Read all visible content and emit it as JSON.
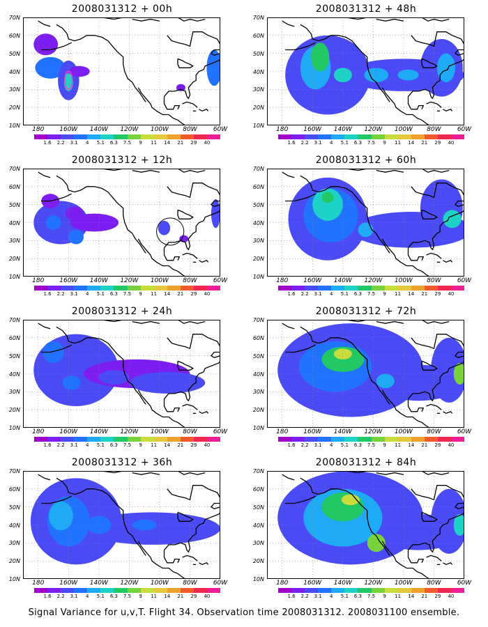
{
  "panels": [
    {
      "title": "2008031312 + 00h",
      "blobs": [
        {
          "cx": -172,
          "cy": 42,
          "rx": 10,
          "ry": 6,
          "level": 3
        },
        {
          "cx": -160,
          "cy": 35,
          "rx": 7,
          "ry": 11,
          "level": 2
        },
        {
          "cx": -160,
          "cy": 34,
          "rx": 3,
          "ry": 5,
          "level": 5
        },
        {
          "cx": -153,
          "cy": 40,
          "rx": 7,
          "ry": 3,
          "level": 1
        },
        {
          "cx": -175,
          "cy": 55,
          "rx": 8,
          "ry": 6,
          "level": 1
        },
        {
          "cx": -86,
          "cy": 31,
          "rx": 3,
          "ry": 2,
          "level": 1
        },
        {
          "cx": -64,
          "cy": 42,
          "rx": 5,
          "ry": 10,
          "level": 3
        }
      ]
    },
    {
      "title": "2008031312 + 48h",
      "blobs": [
        {
          "cx": -150,
          "cy": 38,
          "rx": 28,
          "ry": 22,
          "level": 2
        },
        {
          "cx": -100,
          "cy": 38,
          "rx": 40,
          "ry": 9,
          "level": 2
        },
        {
          "cx": -75,
          "cy": 42,
          "rx": 14,
          "ry": 16,
          "level": 2
        },
        {
          "cx": -158,
          "cy": 42,
          "rx": 10,
          "ry": 12,
          "level": 4
        },
        {
          "cx": -155,
          "cy": 48,
          "rx": 6,
          "ry": 8,
          "level": 6
        },
        {
          "cx": -140,
          "cy": 38,
          "rx": 6,
          "ry": 4,
          "level": 5
        },
        {
          "cx": -118,
          "cy": 38,
          "rx": 8,
          "ry": 4,
          "level": 4
        },
        {
          "cx": -97,
          "cy": 38,
          "rx": 7,
          "ry": 3,
          "level": 4
        },
        {
          "cx": -72,
          "cy": 42,
          "rx": 6,
          "ry": 8,
          "level": 4
        }
      ]
    },
    {
      "title": "2008031312 + 12h",
      "blobs": [
        {
          "cx": -165,
          "cy": 40,
          "rx": 18,
          "ry": 12,
          "level": 2
        },
        {
          "cx": -172,
          "cy": 52,
          "rx": 6,
          "ry": 4,
          "level": 1
        },
        {
          "cx": -143,
          "cy": 40,
          "rx": 16,
          "ry": 5,
          "level": 1
        },
        {
          "cx": -156,
          "cy": 45,
          "rx": 6,
          "ry": 4,
          "level": 1
        },
        {
          "cx": -170,
          "cy": 40,
          "rx": 5,
          "ry": 4,
          "level": 3
        },
        {
          "cx": -155,
          "cy": 32,
          "rx": 5,
          "ry": 4,
          "level": 3
        },
        {
          "cx": -97,
          "cy": 37,
          "rx": 4,
          "ry": 4,
          "level": 2
        },
        {
          "cx": -84,
          "cy": 31,
          "rx": 3,
          "ry": 2,
          "level": 1
        },
        {
          "cx": -63,
          "cy": 45,
          "rx": 3,
          "ry": 8,
          "level": 2
        }
      ],
      "circle": {
        "cx": -93,
        "cy": 35,
        "r": 9
      }
    },
    {
      "title": "2008031312 + 60h",
      "blobs": [
        {
          "cx": -150,
          "cy": 42,
          "rx": 26,
          "ry": 23,
          "level": 2
        },
        {
          "cx": -95,
          "cy": 36,
          "rx": 40,
          "ry": 10,
          "level": 2
        },
        {
          "cx": -75,
          "cy": 48,
          "rx": 14,
          "ry": 16,
          "level": 2
        },
        {
          "cx": -148,
          "cy": 44,
          "rx": 18,
          "ry": 15,
          "level": 3
        },
        {
          "cx": -150,
          "cy": 50,
          "rx": 10,
          "ry": 9,
          "level": 5
        },
        {
          "cx": -150,
          "cy": 54,
          "rx": 4,
          "ry": 3,
          "level": 6
        },
        {
          "cx": -125,
          "cy": 36,
          "rx": 5,
          "ry": 4,
          "level": 4
        },
        {
          "cx": -68,
          "cy": 42,
          "rx": 6,
          "ry": 5,
          "level": 5
        }
      ]
    },
    {
      "title": "2008031312 + 24h",
      "blobs": [
        {
          "cx": -155,
          "cy": 42,
          "rx": 28,
          "ry": 20,
          "level": 2
        },
        {
          "cx": -115,
          "cy": 40,
          "rx": 35,
          "ry": 8,
          "level": 1
        },
        {
          "cx": -95,
          "cy": 35,
          "rx": 25,
          "ry": 6,
          "level": 2
        },
        {
          "cx": -170,
          "cy": 52,
          "rx": 7,
          "ry": 6,
          "level": 3
        },
        {
          "cx": -158,
          "cy": 35,
          "rx": 6,
          "ry": 4,
          "level": 3
        },
        {
          "cx": -130,
          "cy": 38,
          "rx": 10,
          "ry": 4,
          "level": 2
        }
      ]
    },
    {
      "title": "2008031312 + 72h",
      "blobs": [
        {
          "cx": -135,
          "cy": 42,
          "rx": 48,
          "ry": 26,
          "level": 2
        },
        {
          "cx": -90,
          "cy": 35,
          "rx": 28,
          "ry": 10,
          "level": 2
        },
        {
          "cx": -70,
          "cy": 42,
          "rx": 12,
          "ry": 18,
          "level": 2
        },
        {
          "cx": -145,
          "cy": 44,
          "rx": 24,
          "ry": 14,
          "level": 3
        },
        {
          "cx": -140,
          "cy": 48,
          "rx": 14,
          "ry": 7,
          "level": 6
        },
        {
          "cx": -140,
          "cy": 51,
          "rx": 6,
          "ry": 3,
          "level": 8
        },
        {
          "cx": -112,
          "cy": 36,
          "rx": 6,
          "ry": 4,
          "level": 4
        },
        {
          "cx": -63,
          "cy": 40,
          "rx": 4,
          "ry": 6,
          "level": 7
        }
      ]
    },
    {
      "title": "2008031312 + 36h",
      "blobs": [
        {
          "cx": -155,
          "cy": 42,
          "rx": 30,
          "ry": 24,
          "level": 2
        },
        {
          "cx": -105,
          "cy": 38,
          "rx": 45,
          "ry": 9,
          "level": 2
        },
        {
          "cx": -160,
          "cy": 42,
          "rx": 14,
          "ry": 14,
          "level": 3
        },
        {
          "cx": -165,
          "cy": 45,
          "rx": 8,
          "ry": 8,
          "level": 4
        },
        {
          "cx": -140,
          "cy": 40,
          "rx": 8,
          "ry": 5,
          "level": 3
        },
        {
          "cx": -110,
          "cy": 40,
          "rx": 8,
          "ry": 3,
          "level": 3
        }
      ]
    },
    {
      "title": "2008031312 + 84h",
      "blobs": [
        {
          "cx": -135,
          "cy": 44,
          "rx": 48,
          "ry": 26,
          "level": 2
        },
        {
          "cx": -90,
          "cy": 36,
          "rx": 28,
          "ry": 10,
          "level": 2
        },
        {
          "cx": -70,
          "cy": 42,
          "rx": 12,
          "ry": 18,
          "level": 2
        },
        {
          "cx": -140,
          "cy": 44,
          "rx": 26,
          "ry": 16,
          "level": 4
        },
        {
          "cx": -140,
          "cy": 50,
          "rx": 14,
          "ry": 8,
          "level": 6
        },
        {
          "cx": -135,
          "cy": 54,
          "rx": 6,
          "ry": 3,
          "level": 8
        },
        {
          "cx": -118,
          "cy": 30,
          "rx": 6,
          "ry": 5,
          "level": 7
        },
        {
          "cx": -63,
          "cy": 40,
          "rx": 4,
          "ry": 6,
          "level": 5
        }
      ]
    }
  ],
  "lat_labels": [
    "70N",
    "60N",
    "50N",
    "40N",
    "30N",
    "20N",
    "10N"
  ],
  "lat_values": [
    70,
    60,
    50,
    40,
    30,
    20,
    10
  ],
  "lon_labels": [
    "180",
    "160W",
    "140W",
    "120W",
    "100W",
    "80W",
    "60W"
  ],
  "lon_values": [
    -180,
    -160,
    -140,
    -120,
    -100,
    -80,
    -60
  ],
  "colorbar": {
    "labels": [
      "1.6",
      "2.2",
      "3.1",
      "4",
      "5.1",
      "6.3",
      "7.5",
      "9",
      "11",
      "14",
      "21",
      "29",
      "40"
    ],
    "colors": [
      "#a000c8",
      "#7d1ef0",
      "#4b4bf5",
      "#2173ff",
      "#1faaf5",
      "#1fd2c8",
      "#22c864",
      "#78d23c",
      "#c8dc3c",
      "#e6c83c",
      "#f0a02d",
      "#f05a2d",
      "#f02850",
      "#f01e96"
    ]
  },
  "colors": {
    "outside": "#ffffff",
    "grid": "#888888",
    "coast": "#000000",
    "highlight": "#ff3cc8"
  },
  "caption": "Signal Variance for u,v,T. Flight 34. Observation time 2008031312. 2008031100 ensemble."
}
